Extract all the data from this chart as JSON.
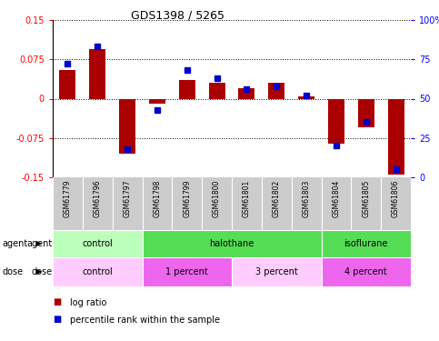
{
  "title": "GDS1398 / 5265",
  "samples": [
    "GSM61779",
    "GSM61796",
    "GSM61797",
    "GSM61798",
    "GSM61799",
    "GSM61800",
    "GSM61801",
    "GSM61802",
    "GSM61803",
    "GSM61804",
    "GSM61805",
    "GSM61806"
  ],
  "log_ratio": [
    0.055,
    0.095,
    -0.105,
    -0.01,
    0.035,
    0.03,
    0.02,
    0.03,
    0.005,
    -0.085,
    -0.055,
    -0.145
  ],
  "percentile_rank_pct": [
    72,
    83,
    18,
    43,
    68,
    63,
    56,
    58,
    52,
    20,
    35,
    5
  ],
  "ylim": [
    -0.15,
    0.15
  ],
  "yticks": [
    -0.15,
    -0.075,
    0,
    0.075,
    0.15
  ],
  "bar_color": "#aa0000",
  "dot_color": "#0000cc",
  "bg_color": "#ffffff",
  "agent_groups": [
    {
      "label": "control",
      "start": 0,
      "end": 3,
      "color": "#bbffbb"
    },
    {
      "label": "halothane",
      "start": 3,
      "end": 9,
      "color": "#55dd55"
    },
    {
      "label": "isoflurane",
      "start": 9,
      "end": 12,
      "color": "#55dd55"
    }
  ],
  "dose_groups": [
    {
      "label": "control",
      "start": 0,
      "end": 3,
      "color": "#ffccff"
    },
    {
      "label": "1 percent",
      "start": 3,
      "end": 6,
      "color": "#ee66ee"
    },
    {
      "label": "3 percent",
      "start": 6,
      "end": 9,
      "color": "#ffccff"
    },
    {
      "label": "4 percent",
      "start": 9,
      "end": 12,
      "color": "#ee66ee"
    }
  ],
  "legend_items": [
    {
      "label": "log ratio",
      "color": "#aa0000"
    },
    {
      "label": "percentile rank within the sample",
      "color": "#0000cc"
    }
  ],
  "right_yticks": [
    0,
    25,
    50,
    75,
    100
  ],
  "right_yticklabels": [
    "0",
    "25",
    "50",
    "75",
    "100%"
  ]
}
